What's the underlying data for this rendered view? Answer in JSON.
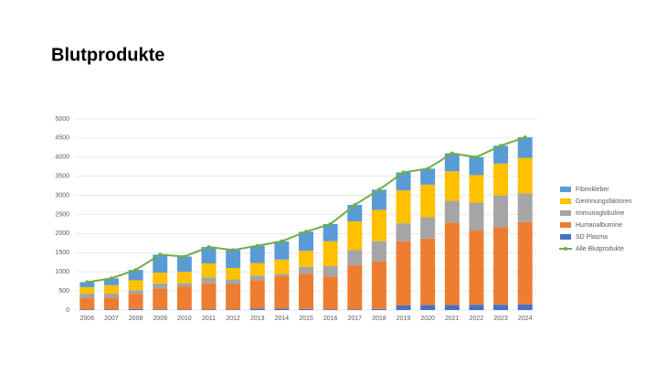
{
  "chart_data": {
    "type": "stacked_bar_line",
    "title": "Blutprodukte",
    "categories": [
      "2006",
      "2007",
      "2008",
      "2009",
      "2010",
      "2011",
      "2012",
      "2013",
      "2014",
      "2015",
      "2016",
      "2017",
      "2018",
      "2019",
      "2020",
      "2021",
      "2022",
      "2023",
      "2024"
    ],
    "series": [
      {
        "name": "SD Plasma",
        "color": "#4472c4",
        "values": [
          20,
          20,
          30,
          20,
          20,
          20,
          20,
          40,
          40,
          30,
          20,
          20,
          30,
          120,
          130,
          130,
          140,
          140,
          150
        ]
      },
      {
        "name": "Humanalbumine",
        "color": "#ed7d31",
        "values": [
          300,
          310,
          390,
          540,
          600,
          680,
          660,
          740,
          860,
          920,
          860,
          1150,
          1240,
          1680,
          1740,
          2160,
          1940,
          2030,
          2150
        ]
      },
      {
        "name": "Immunoglobuline",
        "color": "#a5a5a5",
        "values": [
          110,
          100,
          100,
          140,
          80,
          150,
          120,
          120,
          50,
          180,
          270,
          400,
          530,
          470,
          560,
          570,
          730,
          830,
          750
        ]
      },
      {
        "name": "Gerinnungsfaktoren",
        "color": "#ffc000",
        "values": [
          170,
          220,
          260,
          280,
          300,
          370,
          300,
          330,
          370,
          420,
          650,
          750,
          820,
          860,
          850,
          770,
          720,
          830,
          930
        ]
      },
      {
        "name": "Fibrinkleber",
        "color": "#5b9bd5",
        "values": [
          130,
          180,
          270,
          470,
          400,
          430,
          470,
          450,
          480,
          500,
          450,
          430,
          530,
          470,
          420,
          470,
          470,
          470,
          540
        ]
      },
      {
        "name": "Alle Blutprodukte",
        "color": "#70ad47",
        "type": "line",
        "values": [
          730,
          830,
          1050,
          1450,
          1400,
          1650,
          1570,
          1680,
          1800,
          2050,
          2250,
          2750,
          3150,
          3600,
          3700,
          4100,
          4000,
          4300,
          4520
        ]
      }
    ],
    "ylim": [
      0,
      5000
    ],
    "yticks": [
      0,
      500,
      1000,
      1500,
      2000,
      2500,
      3000,
      3500,
      4000,
      4500,
      5000
    ],
    "grid": true,
    "legend": "right"
  }
}
